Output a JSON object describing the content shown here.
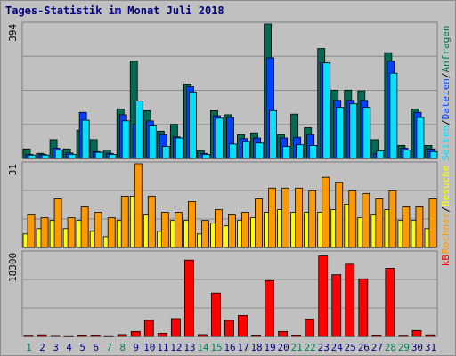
{
  "title": "Tages-Statistik im Monat Juli 2018",
  "colors": {
    "hits": "#006b54",
    "files": "#0040ff",
    "pages": "#00e0ff",
    "visits": "#ffff00",
    "sites": "#ff9900",
    "kbytes": "#ff0000",
    "weekend_label": "#00805c",
    "weekday_label": "#000080",
    "panel_bg": "#c0c0c0"
  },
  "legend_top": [
    "Anfragen",
    "Dateien",
    "Seiten"
  ],
  "legend_mid": [
    "Besuche",
    "Rechner"
  ],
  "legend_bot": [
    "kB"
  ],
  "chart_data": [
    {
      "type": "bar",
      "title": "Tages-Statistik im Monat Juli 2018",
      "categories": [
        "1",
        "2",
        "3",
        "4",
        "5",
        "6",
        "7",
        "8",
        "9",
        "10",
        "11",
        "12",
        "13",
        "14",
        "15",
        "16",
        "17",
        "18",
        "19",
        "20",
        "21",
        "22",
        "23",
        "24",
        "25",
        "26",
        "27",
        "28",
        "29",
        "30",
        "31"
      ],
      "weekend_days": [
        "1",
        "7",
        "8",
        "14",
        "15",
        "21",
        "22",
        "28",
        "29"
      ],
      "y_max_label": "394",
      "ylim": [
        0,
        394
      ],
      "series": [
        {
          "name": "Anfragen",
          "values": [
            28,
            15,
            55,
            28,
            83,
            55,
            25,
            145,
            285,
            140,
            80,
            100,
            218,
            22,
            140,
            128,
            70,
            75,
            394,
            70,
            130,
            90,
            322,
            200,
            200,
            198,
            55,
            310,
            38,
            145,
            38
          ]
        },
        {
          "name": "Dateien",
          "values": [
            12,
            12,
            30,
            16,
            135,
            20,
            15,
            128,
            100,
            110,
            70,
            63,
            210,
            15,
            125,
            120,
            58,
            60,
            295,
            60,
            62,
            70,
            280,
            170,
            170,
            170,
            15,
            285,
            30,
            135,
            28
          ]
        },
        {
          "name": "Seiten",
          "values": [
            10,
            10,
            25,
            12,
            112,
            18,
            12,
            110,
            168,
            95,
            35,
            60,
            195,
            12,
            118,
            42,
            50,
            45,
            140,
            35,
            40,
            38,
            280,
            150,
            160,
            150,
            22,
            250,
            25,
            120,
            20
          ]
        }
      ]
    },
    {
      "type": "bar",
      "categories": [
        "1",
        "2",
        "3",
        "4",
        "5",
        "6",
        "7",
        "8",
        "9",
        "10",
        "11",
        "12",
        "13",
        "14",
        "15",
        "16",
        "17",
        "18",
        "19",
        "20",
        "21",
        "22",
        "23",
        "24",
        "25",
        "26",
        "27",
        "28",
        "29",
        "30",
        "31"
      ],
      "y_max_label": "31",
      "ylim": [
        0,
        31
      ],
      "series": [
        {
          "name": "Besuche",
          "values": [
            5,
            7,
            10,
            7,
            10,
            6,
            4,
            10,
            19,
            12,
            6,
            10,
            10,
            5,
            9,
            8,
            10,
            11,
            13,
            14,
            13,
            13,
            13,
            14,
            16,
            11,
            12,
            14,
            10,
            10,
            7
          ]
        },
        {
          "name": "Rechner",
          "values": [
            12,
            11,
            18,
            11,
            15,
            13,
            11,
            19,
            31,
            19,
            13,
            13,
            17,
            10,
            14,
            12,
            13,
            18,
            22,
            22,
            22,
            21,
            26,
            24,
            21,
            20,
            18,
            21,
            15,
            15,
            18
          ]
        }
      ]
    },
    {
      "type": "bar",
      "categories": [
        "1",
        "2",
        "3",
        "4",
        "5",
        "6",
        "7",
        "8",
        "9",
        "10",
        "11",
        "12",
        "13",
        "14",
        "15",
        "16",
        "17",
        "18",
        "19",
        "20",
        "21",
        "22",
        "23",
        "24",
        "25",
        "26",
        "27",
        "28",
        "29",
        "30",
        "31"
      ],
      "y_max_label": "18300",
      "ylim": [
        0,
        18300
      ],
      "series": [
        {
          "name": "kB",
          "values": [
            250,
            350,
            200,
            150,
            300,
            300,
            150,
            400,
            1100,
            3500,
            700,
            3900,
            16700,
            400,
            9500,
            3500,
            4600,
            300,
            12200,
            1100,
            300,
            3800,
            17600,
            13500,
            15800,
            12600,
            300,
            14900,
            250,
            1300,
            350
          ]
        }
      ]
    }
  ]
}
